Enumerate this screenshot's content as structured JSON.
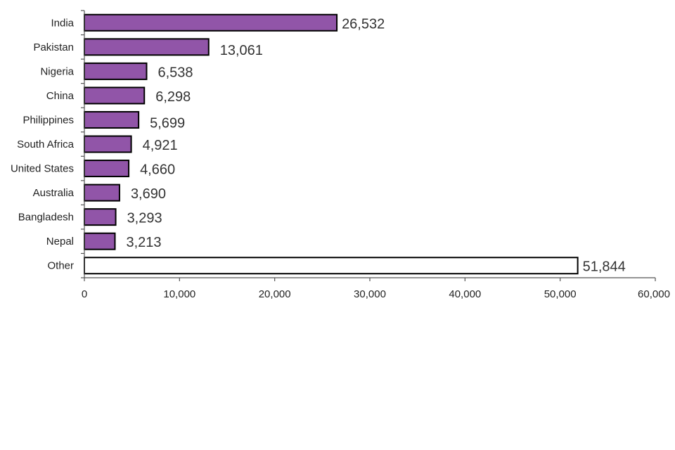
{
  "chart_data": {
    "type": "bar",
    "orientation": "horizontal",
    "title": "",
    "xlabel": "",
    "ylabel": "",
    "xlim": [
      0,
      60000
    ],
    "x_ticks": [
      0,
      10000,
      20000,
      30000,
      40000,
      50000,
      60000
    ],
    "x_tick_labels": [
      "0",
      "10,000",
      "20,000",
      "30,000",
      "40,000",
      "50,000",
      "60,000"
    ],
    "grid": false,
    "legend": "none",
    "categories": [
      "India",
      "Pakistan",
      "Nigeria",
      "China",
      "Philippines",
      "South Africa",
      "United States",
      "Australia",
      "Bangladesh",
      "Nepal",
      "Other"
    ],
    "values": [
      26532,
      13061,
      6538,
      6298,
      5699,
      4921,
      4660,
      3690,
      3293,
      3213,
      51844
    ],
    "value_labels": [
      "26,532",
      "13,061",
      "6,538",
      "6,298",
      "5,699",
      "4,921",
      "4,660",
      "3,690",
      "3,293",
      "3,213",
      "51,844"
    ],
    "colors": {
      "bar": "#9155a8",
      "bar_other": "#ffffff",
      "bar_edge": "#000000",
      "axis": "#555555"
    }
  }
}
